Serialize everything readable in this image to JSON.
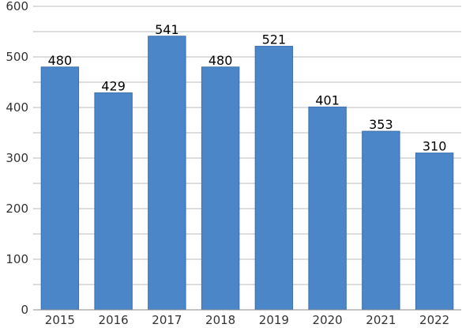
{
  "chart_data": {
    "type": "bar",
    "categories": [
      "2015",
      "2016",
      "2017",
      "2018",
      "2019",
      "2020",
      "2021",
      "2022"
    ],
    "values": [
      480,
      429,
      541,
      480,
      521,
      401,
      353,
      310
    ],
    "data_labels": [
      "480",
      "429",
      "541",
      "480",
      "521",
      "401",
      "353",
      "310"
    ],
    "title": "",
    "xlabel": "",
    "ylabel": "",
    "ylim": [
      0,
      600
    ],
    "yticks": [
      0,
      100,
      200,
      300,
      400,
      500,
      600
    ],
    "minor_gridlines": true,
    "legend": "none",
    "bar_color": "#4a86c8",
    "bar_edge_color": "#3a70ad"
  }
}
